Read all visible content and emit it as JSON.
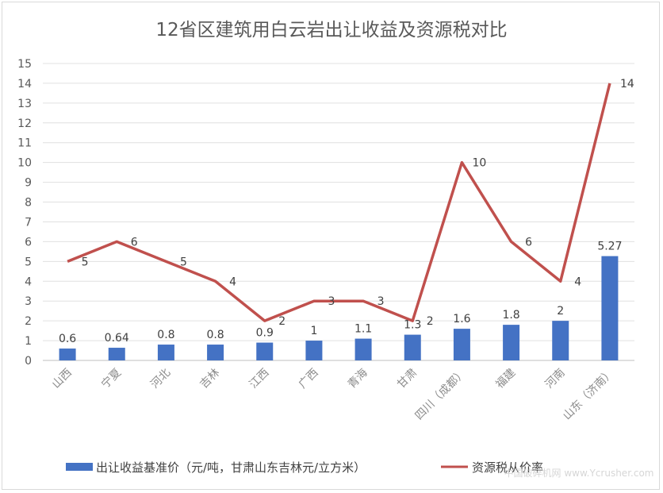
{
  "chart_data": {
    "type": "bar",
    "title": "12省区建筑用白云岩出让收益及资源税对比",
    "categories": [
      "山西",
      "宁夏",
      "河北",
      "吉林",
      "江西",
      "广西",
      "青海",
      "甘肃",
      "四川（成都）",
      "福建",
      "河南",
      "山东（济南）"
    ],
    "series": [
      {
        "name": "出让收益基准价（元/吨，甘肃山东吉林元/立方米）",
        "type": "bar",
        "color": "#4472c4",
        "values": [
          0.6,
          0.64,
          0.8,
          0.8,
          0.9,
          1,
          1.1,
          1.3,
          1.6,
          1.8,
          2,
          5.27
        ]
      },
      {
        "name": "资源税从价率",
        "type": "line",
        "color": "#c0504d",
        "values": [
          5,
          6,
          5,
          4,
          2,
          3,
          3,
          2,
          10,
          6,
          4,
          14
        ]
      }
    ],
    "ylim": [
      0,
      15
    ],
    "yticks": [
      0,
      1,
      2,
      3,
      4,
      5,
      6,
      7,
      8,
      9,
      10,
      11,
      12,
      13,
      14,
      15
    ],
    "grid": true,
    "legend": "bottom"
  },
  "legend_labels": [
    "出让收益基准价（元/吨，甘肃山东吉林元/立方米）",
    "资源税从价率"
  ],
  "watermark": "中国破碎机网 www.Ycrusher.com"
}
